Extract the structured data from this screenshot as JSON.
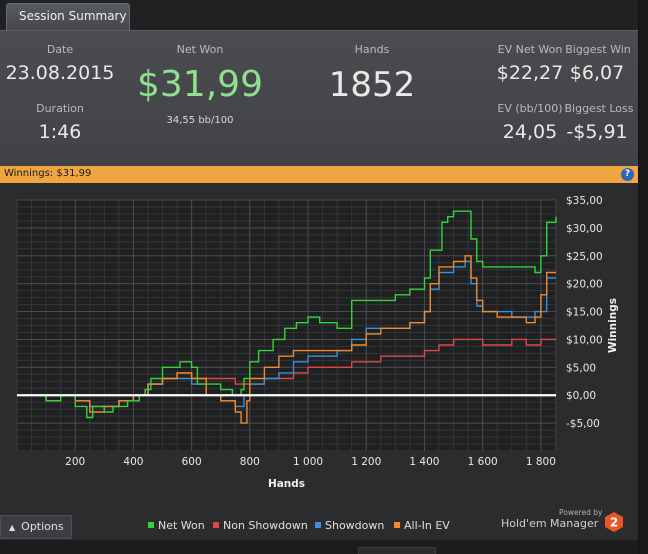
{
  "tab": {
    "label": "Session Summary"
  },
  "summary": {
    "date_label": "Date",
    "date": "23.08.2015",
    "duration_label": "Duration",
    "duration": "1:46",
    "net_won_label": "Net Won",
    "net_won": "$31,99",
    "bb_per_100": "34,55 bb/100",
    "hands_label": "Hands",
    "hands": "1852",
    "ev_net_won_label": "EV Net Won",
    "ev_net_won": "$22,27",
    "biggest_win_label": "Biggest Win",
    "biggest_win": "$6,07",
    "ev_bb_label": "EV (bb/100)",
    "ev_bb": "24,05",
    "biggest_loss_label": "Biggest Loss",
    "biggest_loss": "-$5,91"
  },
  "winnings_bar": {
    "text": "Winnings: $31,99",
    "help_glyph": "?"
  },
  "colors": {
    "net_won": "#36d336",
    "non_showdown": "#e04848",
    "showdown": "#3f8fd8",
    "allin_ev": "#f08a2c",
    "net_won_text": "#8fe08f",
    "winnings_bar": "#f0a640"
  },
  "chart_data": {
    "type": "line",
    "xlabel": "Hands",
    "ylabel": "Winnings",
    "xlim": [
      0,
      1852
    ],
    "ylim": [
      -10,
      35
    ],
    "x_ticks": [
      200,
      400,
      600,
      800,
      1000,
      1200,
      1400,
      1600,
      1800
    ],
    "x_tick_labels": [
      "200",
      "400",
      "600",
      "800",
      "1 000",
      "1 200",
      "1 400",
      "1 600",
      "1 800"
    ],
    "y_ticks": [
      -5,
      0,
      5,
      10,
      15,
      20,
      25,
      30,
      35
    ],
    "y_tick_labels": [
      "-$5,00",
      "$0,00",
      "$5,00",
      "$10,00",
      "$15,00",
      "$20,00",
      "$25,00",
      "$30,00",
      "$35,00"
    ],
    "zero_line": true,
    "grid": true,
    "legend_position": "bottom",
    "series": [
      {
        "name": "Net Won",
        "color_key": "net_won",
        "x": [
          0,
          60,
          100,
          150,
          200,
          240,
          260,
          300,
          330,
          380,
          420,
          440,
          460,
          500,
          520,
          560,
          600,
          620,
          650,
          700,
          740,
          770,
          780,
          800,
          830,
          860,
          880,
          920,
          960,
          1000,
          1040,
          1080,
          1100,
          1150,
          1200,
          1250,
          1300,
          1350,
          1400,
          1420,
          1440,
          1460,
          1480,
          1500,
          1530,
          1560,
          1580,
          1600,
          1650,
          1700,
          1750,
          1780,
          1800,
          1820,
          1852
        ],
        "y": [
          0,
          0,
          -1,
          0,
          -2,
          -4,
          -2,
          -3,
          -2,
          -1,
          0,
          1,
          3,
          5,
          5,
          6,
          5,
          2,
          2,
          1,
          0,
          1,
          3,
          6,
          8,
          8,
          10,
          12,
          13,
          14,
          13,
          13,
          12,
          17,
          17,
          17,
          18,
          19,
          21,
          26,
          26,
          31,
          32,
          33,
          33,
          28,
          24,
          23,
          23,
          23,
          23,
          22,
          25,
          31,
          32
        ]
      },
      {
        "name": "Non Showdown",
        "color_key": "non_showdown",
        "x": [
          0,
          60,
          100,
          150,
          200,
          250,
          300,
          350,
          400,
          450,
          500,
          550,
          600,
          650,
          700,
          750,
          800,
          850,
          900,
          950,
          1000,
          1050,
          1100,
          1150,
          1200,
          1250,
          1300,
          1350,
          1400,
          1450,
          1500,
          1550,
          1600,
          1650,
          1700,
          1750,
          1800,
          1852
        ],
        "y": [
          0,
          0,
          -1,
          0,
          -1,
          -2,
          -2,
          -1,
          0,
          2,
          3,
          4,
          3,
          3,
          3,
          2,
          2,
          3,
          3,
          4,
          5,
          5,
          5,
          6,
          6,
          7,
          7,
          7,
          8,
          9,
          10,
          10,
          9,
          9,
          10,
          9,
          10,
          10
        ]
      },
      {
        "name": "Showdown",
        "color_key": "showdown",
        "x": [
          0,
          60,
          100,
          150,
          200,
          250,
          300,
          350,
          400,
          450,
          500,
          550,
          600,
          650,
          700,
          750,
          780,
          800,
          850,
          900,
          950,
          1000,
          1050,
          1100,
          1150,
          1200,
          1250,
          1300,
          1350,
          1400,
          1420,
          1450,
          1500,
          1540,
          1560,
          1580,
          1600,
          1650,
          1700,
          1750,
          1780,
          1800,
          1820,
          1852
        ],
        "y": [
          0,
          0,
          -1,
          0,
          -1,
          -2,
          -2,
          -1,
          0,
          2,
          3,
          3,
          2,
          0,
          -1,
          -2,
          0,
          2,
          3,
          4,
          6,
          7,
          7,
          8,
          10,
          12,
          12,
          12,
          13,
          15,
          19,
          22,
          23,
          24,
          20,
          16,
          15,
          15,
          14,
          14,
          15,
          15,
          21,
          21
        ]
      },
      {
        "name": "All-In EV",
        "color_key": "allin_ev",
        "x": [
          0,
          60,
          100,
          150,
          200,
          250,
          300,
          350,
          400,
          450,
          500,
          550,
          600,
          650,
          700,
          750,
          770,
          790,
          800,
          850,
          900,
          950,
          1000,
          1050,
          1100,
          1150,
          1200,
          1250,
          1300,
          1350,
          1400,
          1420,
          1450,
          1500,
          1540,
          1560,
          1580,
          1600,
          1650,
          1700,
          1750,
          1780,
          1800,
          1820,
          1852
        ],
        "y": [
          0,
          0,
          -1,
          0,
          -1,
          -3,
          -2,
          -1,
          0,
          2,
          3,
          4,
          3,
          0,
          -1,
          -3,
          -5,
          -1,
          3,
          5,
          7,
          8,
          8,
          8,
          8,
          9,
          11,
          12,
          12,
          13,
          15,
          20,
          23,
          24,
          25,
          21,
          17,
          15,
          14,
          14,
          13,
          14,
          18,
          22,
          22
        ]
      }
    ]
  },
  "legend": [
    {
      "label": "Net Won",
      "color_key": "net_won"
    },
    {
      "label": "Non Showdown",
      "color_key": "non_showdown"
    },
    {
      "label": "Showdown",
      "color_key": "showdown"
    },
    {
      "label": "All-In EV",
      "color_key": "allin_ev"
    }
  ],
  "bottom": {
    "options_label": "Options",
    "options_icon": "chevron-up-icon",
    "powered_by": "Powered by",
    "brand": "Hold'em Manager",
    "brand_logo_number": "2"
  }
}
